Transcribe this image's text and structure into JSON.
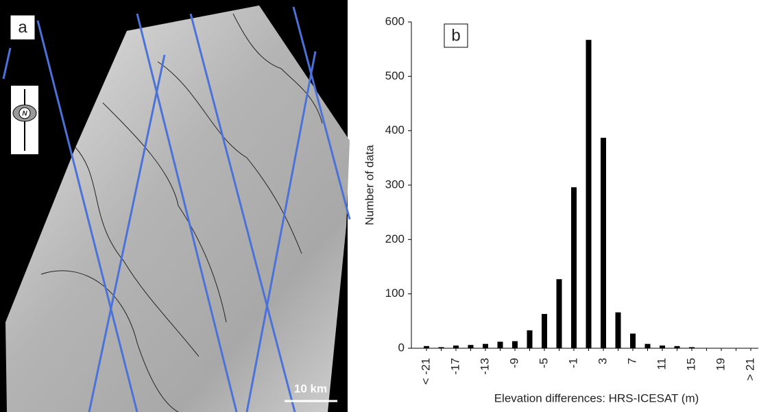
{
  "panel_a": {
    "label": "a",
    "compass": "N",
    "scale_bar": "10 km"
  },
  "chart_data": {
    "type": "bar",
    "label": "b",
    "x_label": "Elevation differences: HRS-ICESAT (m)",
    "y_label": "Number of data",
    "categories": [
      "< -21",
      null,
      "-17",
      null,
      "-13",
      null,
      "-9",
      null,
      "-5",
      null,
      "-1",
      null,
      "3",
      null,
      "7",
      null,
      "11",
      null,
      "15",
      null,
      "19",
      null,
      "> 21"
    ],
    "values": [
      4,
      2,
      5,
      6,
      8,
      12,
      13,
      33,
      63,
      127,
      296,
      567,
      387,
      66,
      27,
      8,
      5,
      4,
      2,
      0,
      0,
      0,
      0
    ],
    "color": "#000000",
    "ylim": [
      0,
      600
    ],
    "yticks": [
      0,
      100,
      200,
      300,
      400,
      500,
      600
    ],
    "grid": false
  }
}
